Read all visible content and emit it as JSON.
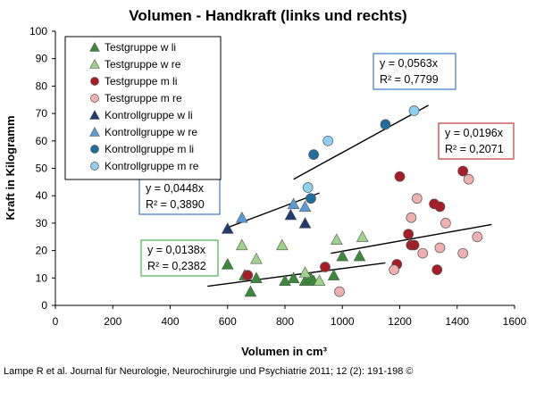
{
  "chart_data": {
    "type": "scatter",
    "title": "Volumen - Handkraft (links und rechts)",
    "xlabel": "Volumen in cm³",
    "ylabel": "Kraft in Kilogramm",
    "xlim": [
      0,
      1600
    ],
    "ylim": [
      0,
      100
    ],
    "xticks": [
      0,
      200,
      400,
      600,
      800,
      1000,
      1200,
      1400,
      1600
    ],
    "yticks": [
      0,
      10,
      20,
      30,
      40,
      50,
      60,
      70,
      80,
      90,
      100
    ],
    "grid": false,
    "legend_position": "top-left",
    "series": [
      {
        "name": "Testgruppe w li",
        "marker": "triangle",
        "color": "#3a8a3a",
        "points": [
          [
            600,
            15
          ],
          [
            660,
            11
          ],
          [
            680,
            5
          ],
          [
            700,
            10
          ],
          [
            800,
            9
          ],
          [
            830,
            10
          ],
          [
            870,
            9
          ],
          [
            890,
            10
          ],
          [
            900,
            9
          ],
          [
            970,
            11
          ],
          [
            1000,
            18
          ],
          [
            1060,
            18
          ]
        ]
      },
      {
        "name": "Testgruppe w re",
        "marker": "triangle",
        "color": "#9ed38c",
        "points": [
          [
            650,
            22
          ],
          [
            700,
            17
          ],
          [
            790,
            22
          ],
          [
            870,
            12
          ],
          [
            920,
            9
          ],
          [
            980,
            24
          ],
          [
            1070,
            25
          ]
        ]
      },
      {
        "name": "Testgruppe m li",
        "marker": "circle",
        "color": "#a81c26",
        "points": [
          [
            670,
            11
          ],
          [
            940,
            14
          ],
          [
            1190,
            15
          ],
          [
            1200,
            47
          ],
          [
            1230,
            26
          ],
          [
            1240,
            22
          ],
          [
            1250,
            22
          ],
          [
            1320,
            37
          ],
          [
            1340,
            36
          ],
          [
            1330,
            13
          ],
          [
            1420,
            49
          ]
        ]
      },
      {
        "name": "Testgruppe m re",
        "marker": "circle",
        "color": "#f0b0b0",
        "points": [
          [
            990,
            5
          ],
          [
            1180,
            13
          ],
          [
            1240,
            32
          ],
          [
            1260,
            39
          ],
          [
            1280,
            19
          ],
          [
            1340,
            21
          ],
          [
            1360,
            30
          ],
          [
            1420,
            19
          ],
          [
            1440,
            46
          ],
          [
            1470,
            25
          ]
        ]
      },
      {
        "name": "Kontrollgruppe w li",
        "marker": "triangle",
        "color": "#1f3b70",
        "points": [
          [
            600,
            28
          ],
          [
            820,
            33
          ],
          [
            870,
            30
          ]
        ]
      },
      {
        "name": "Kontrollgruppe w re",
        "marker": "triangle",
        "color": "#5b9bd5",
        "points": [
          [
            650,
            32
          ],
          [
            830,
            37
          ],
          [
            870,
            36
          ]
        ]
      },
      {
        "name": "Kontrollgruppe m li",
        "marker": "circle",
        "color": "#1f6ea0",
        "points": [
          [
            890,
            39
          ],
          [
            900,
            55
          ],
          [
            1150,
            66
          ]
        ]
      },
      {
        "name": "Kontrollgruppe m re",
        "marker": "circle",
        "color": "#8fd0f0",
        "points": [
          [
            880,
            43
          ],
          [
            950,
            60
          ],
          [
            1250,
            71
          ]
        ]
      }
    ],
    "trendlines": [
      {
        "x": [
          830,
          1300
        ],
        "y": [
          46,
          73
        ]
      },
      {
        "x": [
          590,
          920
        ],
        "y": [
          28,
          41
        ]
      },
      {
        "x": [
          960,
          1520
        ],
        "y": [
          19,
          29.5
        ]
      },
      {
        "x": [
          530,
          1150
        ],
        "y": [
          7,
          15.5
        ]
      }
    ],
    "annotations": [
      {
        "lines": [
          "y = 0,0563x",
          "R² = 0,7799"
        ],
        "border": "#3a7bbf"
      },
      {
        "lines": [
          "y = 0,0196x",
          "R² = 0,2071"
        ],
        "border": "#c0393b"
      },
      {
        "lines": [
          "y = 0,0448x",
          "R² = 0,3890"
        ],
        "border": "#3a7bbf"
      },
      {
        "lines": [
          "y = 0,0138x",
          "R² = 0,2382"
        ],
        "border": "#4caf50"
      }
    ]
  },
  "caption": "Lampe R et al. Journal für Neurologie, Neurochirurgie und Psychiatrie 2011; 12 (2): 191-198 ©"
}
